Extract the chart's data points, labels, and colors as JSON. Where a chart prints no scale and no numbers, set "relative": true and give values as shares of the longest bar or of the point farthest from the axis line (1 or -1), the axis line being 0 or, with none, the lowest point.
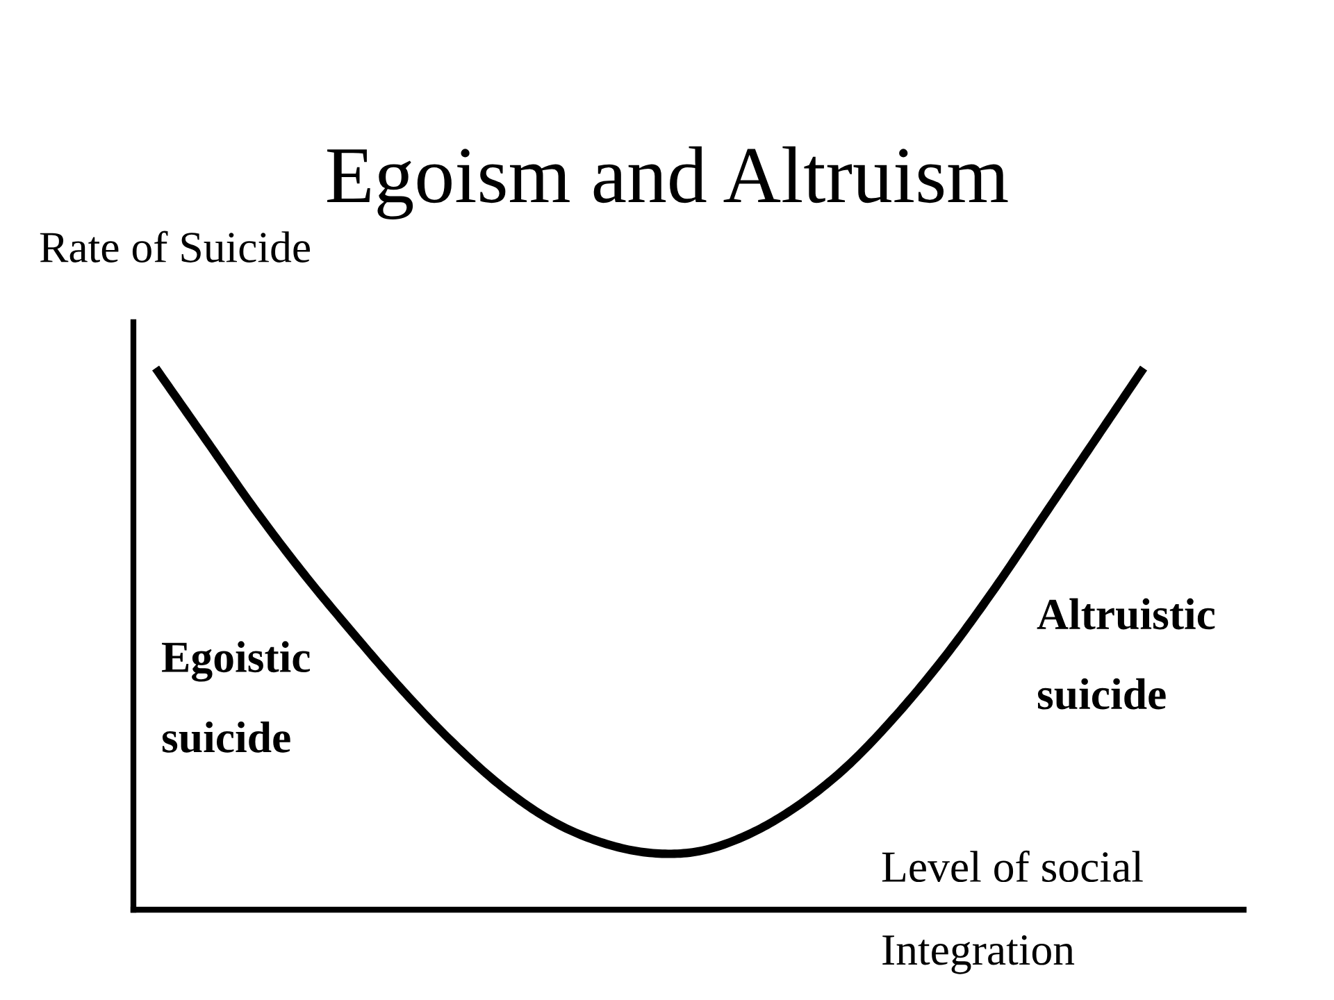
{
  "chart_data": {
    "type": "line",
    "title": "Egoism and Altruism",
    "ylabel": "Rate of Suicide",
    "xlabel": "Level of social\nIntegration",
    "annotations": [
      "Egoistic\nsuicide",
      "Altruistic\nsuicide"
    ],
    "categories": [
      null,
      null,
      null,
      null,
      null,
      null,
      null,
      null,
      null,
      null,
      null,
      null,
      null,
      null,
      null,
      null,
      null,
      null,
      null,
      null,
      null
    ],
    "relative": true,
    "marker": "none",
    "line_style": "solid",
    "series": [
      {
        "color": "#000000",
        "values": [
          1,
          0.87,
          0.74,
          0.62,
          0.51,
          0.405,
          0.31,
          0.228,
          0.165,
          0.125,
          0.105,
          0.108,
          0.139,
          0.192,
          0.265,
          0.36,
          0.47,
          0.595,
          0.73,
          0.865,
          1
        ]
      }
    ]
  }
}
